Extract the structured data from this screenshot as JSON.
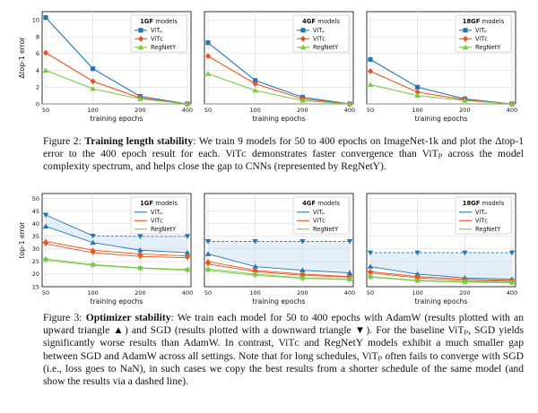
{
  "figure2": {
    "ylabel": "Δtop-1 error",
    "xlabel": "training epochs",
    "colors": {
      "vitp": "#1f77b4",
      "vitc": "#e8541e",
      "regnet": "#7ac943"
    },
    "panels": [
      {
        "title_bold": "1GF",
        "title_rest": " models",
        "legend": [
          "ViTₚ",
          "ViTᴄ",
          "RegNetY"
        ],
        "chart_data": {
          "type": "line",
          "title": "1GF models",
          "x": [
            50,
            100,
            200,
            400
          ],
          "ylim": [
            0,
            11
          ],
          "yticks": [
            0,
            2,
            4,
            6,
            8,
            10
          ],
          "xticks": [
            50,
            100,
            200,
            400
          ],
          "series": [
            {
              "name": "ViT_P",
              "values": [
                10.3,
                4.2,
                0.9,
                0.0
              ]
            },
            {
              "name": "ViT_C",
              "values": [
                6.1,
                2.7,
                0.7,
                0.0
              ]
            },
            {
              "name": "RegNetY",
              "values": [
                4.0,
                1.8,
                0.6,
                0.0
              ]
            }
          ]
        }
      },
      {
        "title_bold": "4GF",
        "title_rest": " models",
        "legend": [
          "ViTₚ",
          "ViTᴄ",
          "RegNetY"
        ],
        "chart_data": {
          "type": "line",
          "title": "4GF models",
          "x": [
            50,
            100,
            200,
            400
          ],
          "ylim": [
            0,
            11
          ],
          "xticks": [
            50,
            100,
            200,
            400
          ],
          "series": [
            {
              "name": "ViT_P",
              "values": [
                7.3,
                2.8,
                0.8,
                0.0
              ]
            },
            {
              "name": "ViT_C",
              "values": [
                5.7,
                2.4,
                0.6,
                0.0
              ]
            },
            {
              "name": "RegNetY",
              "values": [
                3.6,
                1.6,
                0.4,
                0.0
              ]
            }
          ]
        }
      },
      {
        "title_bold": "18GF",
        "title_rest": " models",
        "legend": [
          "ViTₚ",
          "ViTᴄ",
          "RegNetY"
        ],
        "chart_data": {
          "type": "line",
          "title": "18GF models",
          "x": [
            50,
            100,
            200,
            400
          ],
          "ylim": [
            0,
            11
          ],
          "xticks": [
            50,
            100,
            200,
            400
          ],
          "series": [
            {
              "name": "ViT_P",
              "values": [
                5.3,
                2.0,
                0.6,
                0.0
              ]
            },
            {
              "name": "ViT_C",
              "values": [
                3.9,
                1.4,
                0.5,
                0.0
              ]
            },
            {
              "name": "RegNetY",
              "values": [
                2.3,
                1.0,
                0.4,
                0.0
              ]
            }
          ]
        }
      }
    ],
    "caption": {
      "label": "Figure 2: ",
      "bold": "Training length stability",
      "text": ": We train 9 models for 50 to 400 epochs on ImageNet-1k and plot the Δtop-1 error to the 400 epoch result for each. ViTᴄ demonstrates faster convergence than ViTₚ across the model complexity spectrum, and helps close the gap to CNNs (represented by RegNetY)."
    }
  },
  "figure3": {
    "ylabel": "top-1 error",
    "xlabel": "training epochs",
    "panels": [
      {
        "title_bold": "1GF",
        "title_rest": " models",
        "legend": [
          "ViTₚ",
          "ViTᴄ",
          "RegNetY"
        ],
        "chart_data": {
          "type": "line",
          "title": "1GF models",
          "x": [
            50,
            100,
            200,
            400
          ],
          "ylim": [
            15,
            52
          ],
          "yticks": [
            15,
            20,
            25,
            30,
            35,
            40,
            45,
            50
          ],
          "xticks": [
            50,
            100,
            200,
            400
          ],
          "series": [
            {
              "name": "ViT_P AdamW",
              "values": [
                39.0,
                32.5,
                29.5,
                28.5
              ]
            },
            {
              "name": "ViT_P SGD",
              "values": [
                43.5,
                35.2,
                35.0,
                35.0
              ],
              "dashed_from_index": 1
            },
            {
              "name": "ViT_C AdamW",
              "values": [
                33.0,
                29.5,
                28.0,
                27.2
              ]
            },
            {
              "name": "ViT_C SGD",
              "values": [
                32.0,
                28.5,
                27.0,
                26.5
              ]
            },
            {
              "name": "RegNetY AdamW",
              "values": [
                26.0,
                23.8,
                22.5,
                21.8
              ]
            },
            {
              "name": "RegNetY SGD",
              "values": [
                25.5,
                23.5,
                22.3,
                21.5
              ]
            }
          ]
        }
      },
      {
        "title_bold": "4GF",
        "title_rest": " models",
        "legend": [
          "ViTₚ",
          "ViTᴄ",
          "RegNetY"
        ],
        "chart_data": {
          "type": "line",
          "title": "4GF models",
          "x": [
            50,
            100,
            200,
            400
          ],
          "ylim": [
            15,
            52
          ],
          "xticks": [
            50,
            100,
            200,
            400
          ],
          "series": [
            {
              "name": "ViT_P AdamW",
              "values": [
                28.0,
                23.0,
                21.5,
                20.5
              ]
            },
            {
              "name": "ViT_P SGD",
              "values": [
                33.0,
                33.0,
                33.0,
                33.0
              ],
              "dashed_from_index": 0
            },
            {
              "name": "ViT_C AdamW",
              "values": [
                25.0,
                21.5,
                20.0,
                19.0
              ]
            },
            {
              "name": "ViT_C SGD",
              "values": [
                24.0,
                21.0,
                19.5,
                18.8
              ]
            },
            {
              "name": "RegNetY AdamW",
              "values": [
                22.0,
                20.0,
                18.5,
                18.0
              ]
            },
            {
              "name": "RegNetY SGD",
              "values": [
                21.5,
                19.5,
                18.3,
                17.8
              ]
            }
          ]
        }
      },
      {
        "title_bold": "18GF",
        "title_rest": " models",
        "legend": [
          "ViTₚ",
          "ViTᴄ",
          "RegNetY"
        ],
        "chart_data": {
          "type": "line",
          "title": "18GF models",
          "x": [
            50,
            100,
            200,
            400
          ],
          "ylim": [
            15,
            52
          ],
          "xticks": [
            50,
            100,
            200,
            400
          ],
          "series": [
            {
              "name": "ViT_P AdamW",
              "values": [
                23.0,
                20.0,
                18.5,
                18.0
              ]
            },
            {
              "name": "ViT_P SGD",
              "values": [
                28.5,
                28.5,
                28.5,
                28.5
              ],
              "dashed_from_index": 0
            },
            {
              "name": "ViT_C AdamW",
              "values": [
                21.0,
                19.0,
                18.0,
                17.5
              ]
            },
            {
              "name": "ViT_C SGD",
              "values": [
                20.5,
                18.5,
                17.5,
                17.2
              ]
            },
            {
              "name": "RegNetY AdamW",
              "values": [
                19.0,
                17.5,
                17.0,
                16.8
              ]
            },
            {
              "name": "RegNetY SGD",
              "values": [
                18.8,
                17.3,
                16.8,
                16.5
              ]
            }
          ]
        }
      }
    ],
    "caption": {
      "label": "Figure 3: ",
      "bold": "Optimizer stability",
      "text": ": We train each model for 50 to 400 epochs with AdamW (results plotted with an upward triangle ▲) and SGD (results plotted with a downward triangle ▼). For the baseline ViTₚ, SGD yields significantly worse results than AdamW. In contrast, ViTᴄ and RegNetY models exhibit a much smaller gap between SGD and AdamW across all settings. Note that for long schedules, ViTₚ often fails to converge with SGD (i.e., loss goes to NaN), in such cases we copy the best results from a shorter schedule of the same model (and show the results via a dashed line)."
    }
  }
}
